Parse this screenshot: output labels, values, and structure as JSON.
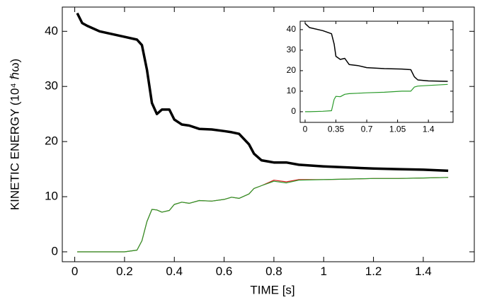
{
  "chart_data": [
    {
      "type": "line",
      "x_label": "TIME [s]",
      "y_label": "KINETIC ENERGY (10⁴ ℏω)",
      "x": [
        0.01,
        0.03,
        0.05,
        0.1,
        0.15,
        0.2,
        0.25,
        0.27,
        0.29,
        0.31,
        0.33,
        0.35,
        0.38,
        0.4,
        0.43,
        0.46,
        0.5,
        0.55,
        0.6,
        0.63,
        0.66,
        0.7,
        0.72,
        0.75,
        0.8,
        0.85,
        0.9,
        1.0,
        1.1,
        1.2,
        1.3,
        1.4,
        1.5
      ],
      "series": [
        {
          "color": "#000000",
          "values": [
            43.3,
            41.5,
            41,
            40,
            39.5,
            39,
            38.5,
            37.5,
            33,
            27,
            25,
            25.8,
            25.8,
            24,
            23.1,
            22.9,
            22.3,
            22.2,
            21.9,
            21.7,
            21.4,
            19.5,
            17.8,
            16.6,
            16.2,
            16.2,
            15.8,
            15.5,
            15.3,
            15.1,
            15,
            14.9,
            14.7
          ]
        },
        {
          "color": "#d62020",
          "values": [
            0,
            0,
            0,
            0,
            0,
            0,
            0.3,
            2,
            5.5,
            7.7,
            7.6,
            7.2,
            7.5,
            8.6,
            9,
            8.8,
            9.3,
            9.2,
            9.5,
            9.9,
            9.7,
            10.5,
            11.5,
            12,
            13.0,
            12.7,
            13.1,
            13.1,
            13.2,
            13.3,
            13.3,
            13.4,
            13.5
          ]
        },
        {
          "color": "#2a9a2a",
          "values": [
            0,
            0,
            0,
            0,
            0,
            0,
            0.3,
            2,
            5.5,
            7.7,
            7.6,
            7.2,
            7.5,
            8.6,
            9,
            8.8,
            9.3,
            9.2,
            9.5,
            9.9,
            9.7,
            10.5,
            11.5,
            12,
            12.8,
            12.5,
            13,
            13.1,
            13.2,
            13.3,
            13.3,
            13.4,
            13.5
          ]
        }
      ],
      "xlim": [
        -0.05,
        1.605
      ],
      "ylim": [
        -1.8,
        44.4
      ],
      "xticks": [
        0,
        0.2,
        0.4,
        0.6,
        0.8,
        1,
        1.2,
        1.4
      ],
      "yticks": [
        0,
        10,
        20,
        30,
        40
      ]
    },
    {
      "type": "line",
      "x": [
        0,
        0.05,
        0.2,
        0.3,
        0.33,
        0.35,
        0.4,
        0.45,
        0.5,
        0.6,
        0.7,
        0.9,
        1.1,
        1.2,
        1.24,
        1.28,
        1.4,
        1.62
      ],
      "series": [
        {
          "color": "#000000",
          "values": [
            43,
            41,
            39.5,
            38,
            33,
            27,
            25.5,
            26,
            23,
            22.5,
            21.5,
            21,
            20.8,
            20.5,
            17,
            15.5,
            15,
            14.8
          ]
        },
        {
          "color": "#2a9a2a",
          "values": [
            0,
            0,
            0.2,
            0.5,
            6,
            7.5,
            7.3,
            8.5,
            8.8,
            9,
            9.2,
            9.5,
            10,
            10,
            12,
            12.5,
            12.8,
            13.3
          ]
        }
      ],
      "xlim": [
        -0.056,
        1.68
      ],
      "ylim": [
        -5.2,
        44.1
      ],
      "xticks": [
        0,
        0.35,
        0.7,
        1.05,
        1.4
      ],
      "yticks": [
        0,
        10,
        20,
        30,
        40
      ]
    }
  ]
}
